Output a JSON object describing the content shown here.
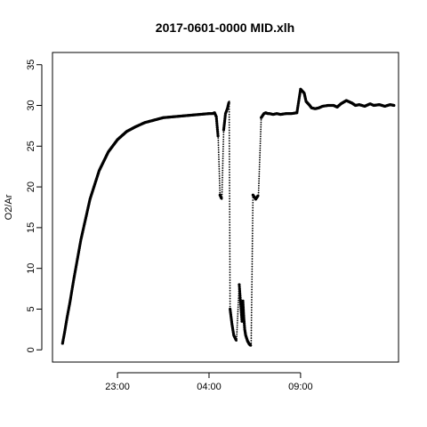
{
  "chart_data": {
    "type": "scatter",
    "title": "2017-0601-0000 MID.xlh",
    "xlabel": "",
    "ylabel": "O2/Ar",
    "x_ticks": [
      "23:00",
      "04:00",
      "09:00"
    ],
    "x_tick_hours": [
      23,
      28,
      33
    ],
    "xlim_hours": [
      19.45,
      38.35
    ],
    "ylim": [
      -1.5,
      36.5
    ],
    "y_ticks": [
      0,
      5,
      10,
      15,
      20,
      25,
      30,
      35
    ],
    "grid": false,
    "legend": "none",
    "series": [
      {
        "values_x_hours": [
          20.0,
          20.1,
          20.25,
          20.4,
          20.6,
          21.0,
          21.5,
          22.0,
          22.5,
          23.0,
          23.5,
          24.0,
          24.5,
          25.0,
          25.5,
          26.0,
          26.5,
          27.0,
          27.5,
          28.0,
          28.2,
          28.3,
          28.4,
          28.5,
          28.6,
          28.7,
          28.8,
          28.9,
          29.0,
          29.1,
          29.15,
          29.25,
          29.35,
          29.5,
          29.65,
          29.8,
          29.85,
          29.9,
          29.95,
          30.0,
          30.1,
          30.2,
          30.3,
          30.4,
          30.55,
          30.7,
          30.85,
          31.0,
          31.1,
          31.2,
          31.3,
          31.5,
          31.7,
          31.9,
          32.2,
          32.5,
          32.8,
          33.0,
          33.2,
          33.3,
          33.5,
          33.6,
          33.8,
          34.0,
          34.2,
          34.5,
          34.8,
          35.0,
          35.2,
          35.5,
          35.8,
          36.0,
          36.2,
          36.5,
          36.8,
          37.0,
          37.3,
          37.6,
          37.9,
          38.1
        ],
        "values_y": [
          0.8,
          2.0,
          4.0,
          5.8,
          8.5,
          13.5,
          18.5,
          22.0,
          24.3,
          25.8,
          26.8,
          27.4,
          27.9,
          28.2,
          28.5,
          28.6,
          28.7,
          28.8,
          28.9,
          29.0,
          29.0,
          29.1,
          28.6,
          26.0,
          19.0,
          18.5,
          27.0,
          29.0,
          29.6,
          30.5,
          5.0,
          3.2,
          1.8,
          1.1,
          8.0,
          3.5,
          6.0,
          4.0,
          2.5,
          1.8,
          1.1,
          0.7,
          0.5,
          19.0,
          18.5,
          19.0,
          28.5,
          29.0,
          29.1,
          29.0,
          29.0,
          28.9,
          29.0,
          28.9,
          29.0,
          29.0,
          29.1,
          32.0,
          31.5,
          30.5,
          30.0,
          29.7,
          29.6,
          29.7,
          29.9,
          30.0,
          30.0,
          29.8,
          30.2,
          30.6,
          30.3,
          30.0,
          30.1,
          29.9,
          30.2,
          30.0,
          30.1,
          29.9,
          30.1,
          30.0
        ]
      }
    ]
  }
}
